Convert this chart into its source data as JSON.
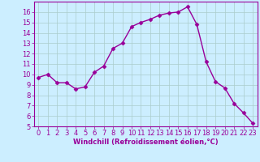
{
  "x": [
    0,
    1,
    2,
    3,
    4,
    5,
    6,
    7,
    8,
    9,
    10,
    11,
    12,
    13,
    14,
    15,
    16,
    17,
    18,
    19,
    20,
    21,
    22,
    23
  ],
  "y": [
    9.7,
    10.0,
    9.2,
    9.2,
    8.6,
    8.8,
    10.2,
    10.8,
    12.5,
    13.0,
    14.6,
    15.0,
    15.3,
    15.7,
    15.9,
    16.0,
    16.5,
    14.8,
    11.2,
    9.3,
    8.7,
    7.2,
    6.3,
    5.3
  ],
  "line_color": "#990099",
  "marker": "D",
  "marker_size": 2.5,
  "bg_color": "#cceeff",
  "grid_color": "#aacccc",
  "xlabel": "Windchill (Refroidissement éolien,°C)",
  "xlim": [
    -0.5,
    23.5
  ],
  "ylim": [
    5,
    17
  ],
  "yticks": [
    5,
    6,
    7,
    8,
    9,
    10,
    11,
    12,
    13,
    14,
    15,
    16
  ],
  "xticks": [
    0,
    1,
    2,
    3,
    4,
    5,
    6,
    7,
    8,
    9,
    10,
    11,
    12,
    13,
    14,
    15,
    16,
    17,
    18,
    19,
    20,
    21,
    22,
    23
  ],
  "xlabel_fontsize": 6.0,
  "tick_fontsize": 6.0,
  "linewidth": 1.0
}
